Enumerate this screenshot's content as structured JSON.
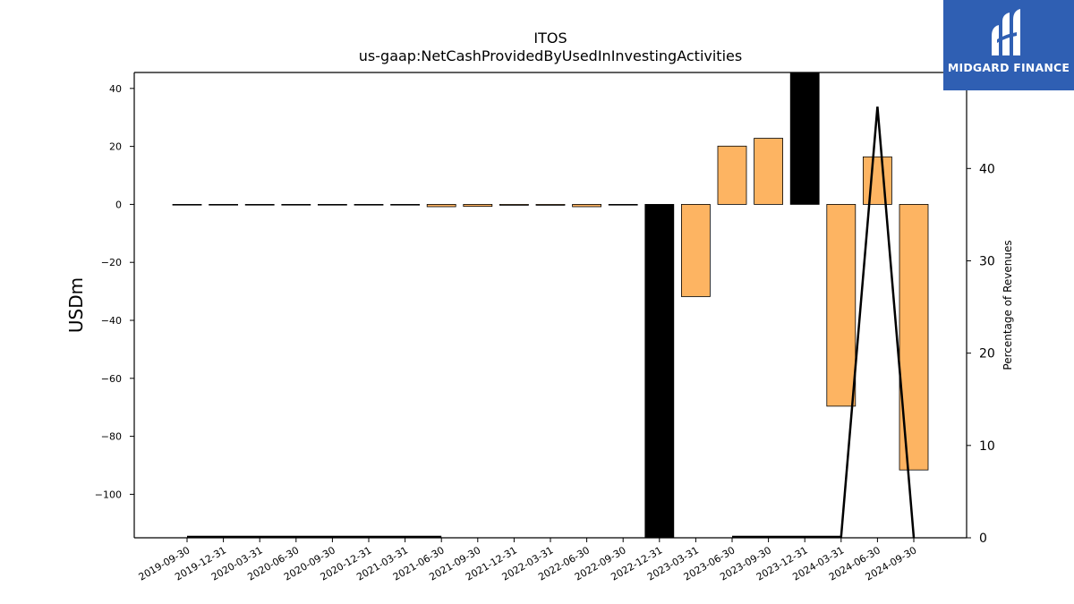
{
  "chart_data": {
    "type": "bar",
    "title": "ITOS",
    "subtitle": "us-gaap:NetCashProvidedByUsedInInvestingActivities",
    "ylabel": "USDm",
    "y2label": "Percentage of Revenues",
    "ylim": [
      -115,
      45.5
    ],
    "y2lim": [
      0,
      50.4
    ],
    "yticks": [
      40,
      20,
      0,
      -20,
      -40,
      -60,
      -80,
      -100
    ],
    "y2ticks": [
      0,
      10,
      20,
      30,
      40
    ],
    "categories": [
      "2019-09-30",
      "2019-12-31",
      "2020-03-31",
      "2020-06-30",
      "2020-09-30",
      "2020-12-31",
      "2021-03-31",
      "2021-06-30",
      "2021-09-30",
      "2021-12-31",
      "2022-03-31",
      "2022-06-30",
      "2022-09-30",
      "2022-12-31",
      "2023-03-31",
      "2023-06-30",
      "2023-09-30",
      "2023-12-31",
      "2024-03-31",
      "2024-06-30",
      "2024-09-30"
    ],
    "series": [
      {
        "values": [
          0,
          0,
          0,
          0,
          0,
          0,
          0,
          -0.8,
          -0.7,
          -0.3,
          -0.3,
          -0.8,
          0,
          -115,
          -31.8,
          20.1,
          22.8,
          45.5,
          -69.6,
          16.4,
          -91.6
        ],
        "colors": [
          "#fdb462",
          "#fdb462",
          "#fdb462",
          "#fdb462",
          "#fdb462",
          "#fdb462",
          "#fdb462",
          "#fdb462",
          "#fdb462",
          "#fdb462",
          "#fdb462",
          "#fdb462",
          "#fdb462",
          "#000000",
          "#fdb462",
          "#fdb462",
          "#fdb462",
          "#000000",
          "#fdb462",
          "#fdb462",
          "#fdb462"
        ]
      },
      {
        "axis": "secondary",
        "type": "line",
        "values": [
          0.1,
          0.1,
          0.1,
          0.1,
          0.1,
          0.1,
          0.1,
          0.1,
          null,
          null,
          null,
          null,
          null,
          null,
          null,
          0.1,
          0.1,
          0.1,
          0.1,
          46.7,
          0
        ],
        "color": "#000000"
      }
    ],
    "grid": false
  },
  "brand": {
    "name": "MIDGARD FINANCE",
    "color": "#2f5fb3"
  }
}
